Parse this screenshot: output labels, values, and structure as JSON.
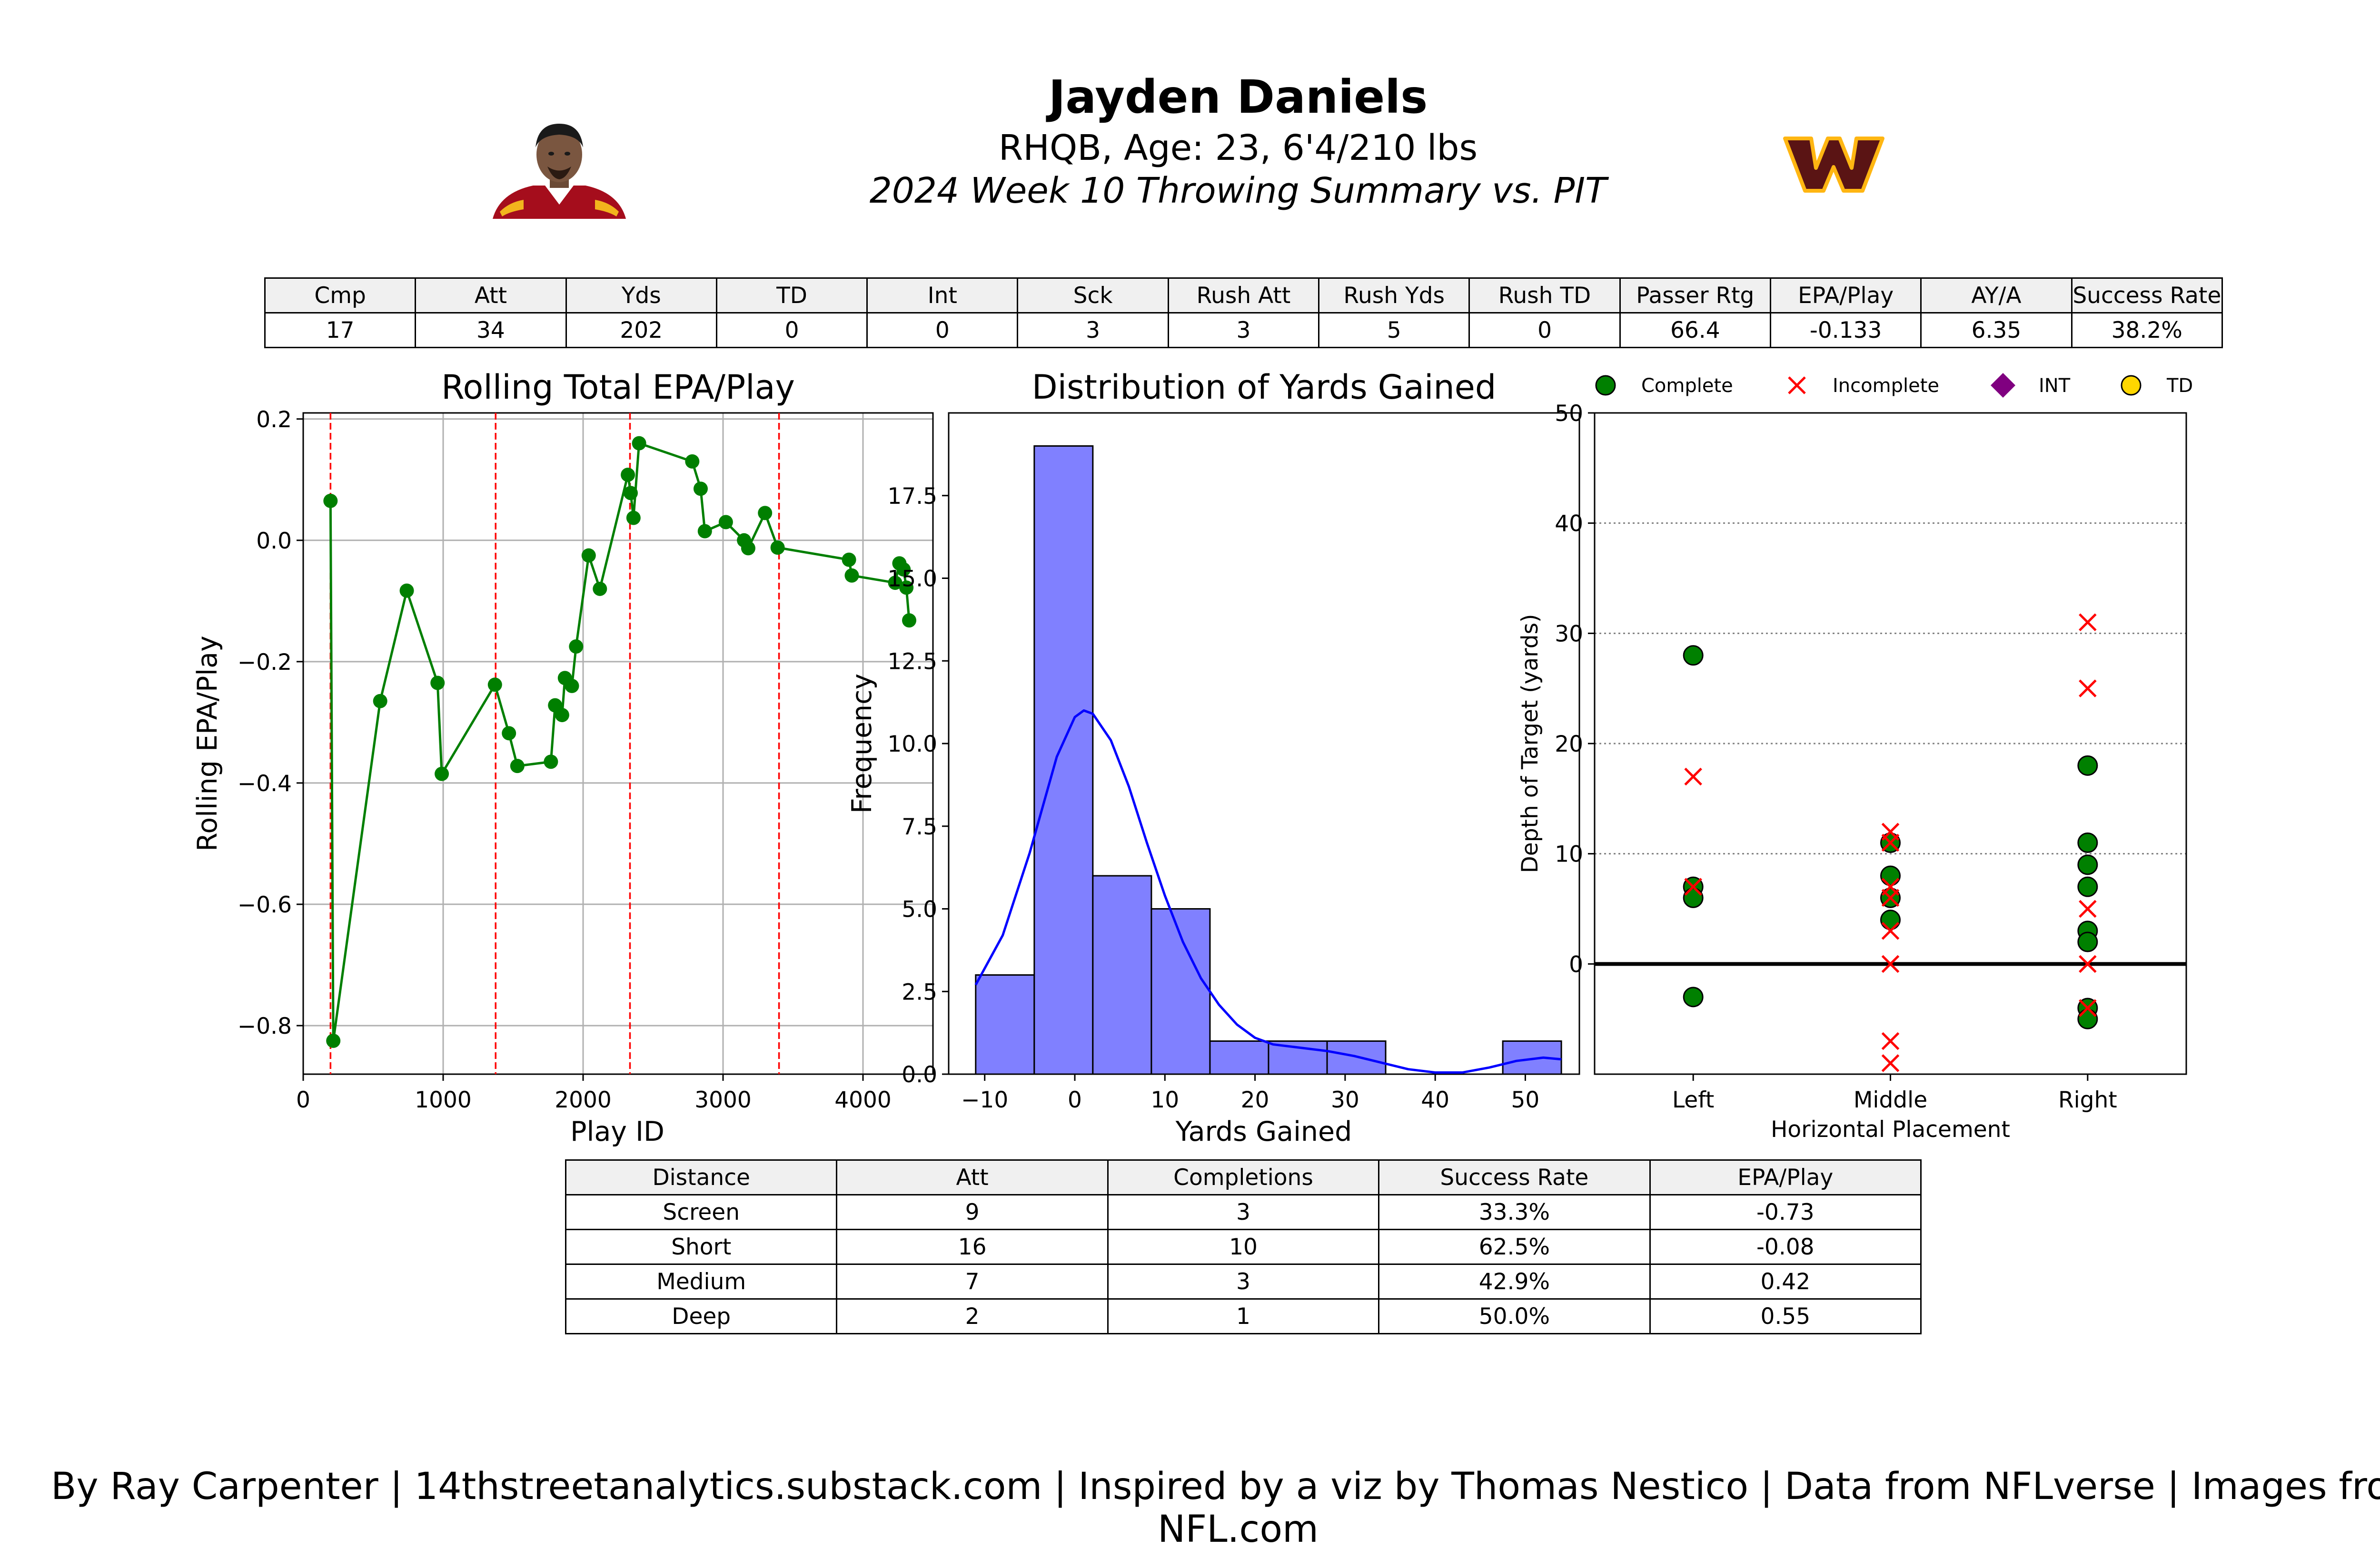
{
  "header": {
    "title": "Jayden Daniels",
    "subtitle": "RHQB, Age: 23, 6'4/210 lbs",
    "subtitle2": "2024 Week 10 Throwing Summary vs. PIT"
  },
  "colors": {
    "line": "#007f00",
    "marker": "#007f00",
    "vline": "#ff0000",
    "bar": "#8080ff",
    "kde": "#0000ff",
    "complete": "#008000",
    "incomplete": "#ff0000",
    "int": "#800080",
    "td": "#ffd700"
  },
  "stats_table": {
    "headers": [
      "Cmp",
      "Att",
      "Yds",
      "TD",
      "Int",
      "Sck",
      "Rush Att",
      "Rush Yds",
      "Rush TD",
      "Passer Rtg",
      "EPA/Play",
      "AY/A",
      "Success Rate"
    ],
    "values": [
      "17",
      "34",
      "202",
      "0",
      "0",
      "3",
      "3",
      "5",
      "0",
      "66.4",
      "-0.133",
      "6.35",
      "38.2%"
    ]
  },
  "distance_table": {
    "headers": [
      "Distance",
      "Att",
      "Completions",
      "Success Rate",
      "EPA/Play"
    ],
    "rows": [
      [
        "Screen",
        "9",
        "3",
        "33.3%",
        "-0.73"
      ],
      [
        "Short",
        "16",
        "10",
        "62.5%",
        "-0.08"
      ],
      [
        "Medium",
        "7",
        "3",
        "42.9%",
        "0.42"
      ],
      [
        "Deep",
        "2",
        "1",
        "50.0%",
        "0.55"
      ]
    ]
  },
  "credit": "By Ray Carpenter | 14thstreetanalytics.substack.com | Inspired by a viz by Thomas Nestico | Data from NFLverse | Images from NFL.com",
  "chart_data": [
    {
      "type": "line",
      "title": "Rolling Total EPA/Play",
      "xlabel": "Play ID",
      "ylabel": "Rolling EPA/Play",
      "xlim": [
        0,
        4500
      ],
      "ylim": [
        -0.88,
        0.21
      ],
      "xticks": [
        0,
        1000,
        2000,
        3000,
        4000
      ],
      "yticks": [
        -0.8,
        -0.6,
        -0.4,
        -0.2,
        0.0,
        0.2
      ],
      "grid": true,
      "quarter_lines": [
        195,
        1375,
        2335,
        3400
      ],
      "x": [
        195,
        215,
        550,
        740,
        960,
        990,
        1370,
        1470,
        1530,
        1770,
        1800,
        1850,
        1870,
        1920,
        1950,
        2040,
        2120,
        2320,
        2340,
        2360,
        2400,
        2780,
        2840,
        2870,
        3020,
        3150,
        3180,
        3300,
        3390,
        3900,
        3920,
        4230,
        4260,
        4290,
        4310,
        4330
      ],
      "y": [
        0.065,
        -0.825,
        -0.265,
        -0.083,
        -0.235,
        -0.385,
        -0.238,
        -0.318,
        -0.372,
        -0.365,
        -0.272,
        -0.288,
        -0.227,
        -0.24,
        -0.175,
        -0.025,
        -0.08,
        0.108,
        0.078,
        0.037,
        0.16,
        0.13,
        0.085,
        0.015,
        0.03,
        0.0,
        -0.013,
        0.045,
        -0.012,
        -0.032,
        -0.058,
        -0.07,
        -0.038,
        -0.048,
        -0.078,
        -0.132
      ]
    },
    {
      "type": "bar",
      "title": "Distribution of Yards Gained",
      "xlabel": "Yards Gained",
      "ylabel": "Frequency",
      "xlim": [
        -14,
        56
      ],
      "ylim": [
        0,
        20
      ],
      "xticks": [
        -10,
        0,
        10,
        20,
        30,
        40,
        50
      ],
      "yticks": [
        0.0,
        2.5,
        5.0,
        7.5,
        10.0,
        12.5,
        15.0,
        17.5
      ],
      "bin_edges": [
        -11,
        -4.5,
        2,
        8.5,
        15,
        21.5,
        28,
        34.5,
        41,
        47.5,
        54
      ],
      "values": [
        3,
        19,
        6,
        5,
        1,
        1,
        1,
        0,
        0,
        1
      ],
      "kde": {
        "x": [
          -11,
          -8,
          -5,
          -2,
          0,
          1,
          2,
          4,
          6,
          8,
          10,
          12,
          14,
          16,
          18,
          20,
          22,
          25,
          28,
          31,
          34,
          37,
          40,
          43,
          46,
          49,
          52,
          54
        ],
        "y": [
          2.7,
          4.2,
          6.7,
          9.6,
          10.8,
          11.0,
          10.9,
          10.1,
          8.7,
          7.0,
          5.4,
          4.0,
          2.9,
          2.1,
          1.5,
          1.1,
          0.9,
          0.8,
          0.7,
          0.55,
          0.35,
          0.15,
          0.05,
          0.05,
          0.2,
          0.4,
          0.5,
          0.45
        ]
      }
    },
    {
      "type": "scatter",
      "xlabel": "Horizontal Placement",
      "ylabel": "Depth of Target (yards)",
      "categories": [
        "Left",
        "Middle",
        "Right"
      ],
      "ylim": [
        -10,
        50
      ],
      "yticks": [
        0,
        10,
        20,
        30,
        40,
        50
      ],
      "legend": [
        "Complete",
        "Incomplete",
        "INT",
        "TD"
      ],
      "legend_position": "top",
      "grid": "horizontal dotted",
      "complete": [
        {
          "cat": "Left",
          "y": 28
        },
        {
          "cat": "Left",
          "y": 7
        },
        {
          "cat": "Left",
          "y": 6
        },
        {
          "cat": "Left",
          "y": -3
        },
        {
          "cat": "Middle",
          "y": 11
        },
        {
          "cat": "Middle",
          "y": 8
        },
        {
          "cat": "Middle",
          "y": 6
        },
        {
          "cat": "Middle",
          "y": 4
        },
        {
          "cat": "Right",
          "y": 18
        },
        {
          "cat": "Right",
          "y": 11
        },
        {
          "cat": "Right",
          "y": 9
        },
        {
          "cat": "Right",
          "y": 7
        },
        {
          "cat": "Right",
          "y": 3
        },
        {
          "cat": "Right",
          "y": 2
        },
        {
          "cat": "Right",
          "y": -4
        },
        {
          "cat": "Right",
          "y": -5
        }
      ],
      "incomplete": [
        {
          "cat": "Left",
          "y": 17
        },
        {
          "cat": "Left",
          "y": 7
        },
        {
          "cat": "Middle",
          "y": 12
        },
        {
          "cat": "Middle",
          "y": 11
        },
        {
          "cat": "Middle",
          "y": 7
        },
        {
          "cat": "Middle",
          "y": 6
        },
        {
          "cat": "Middle",
          "y": 3
        },
        {
          "cat": "Middle",
          "y": 0
        },
        {
          "cat": "Middle",
          "y": -7
        },
        {
          "cat": "Middle",
          "y": -9
        },
        {
          "cat": "Right",
          "y": 31
        },
        {
          "cat": "Right",
          "y": 25
        },
        {
          "cat": "Right",
          "y": 5
        },
        {
          "cat": "Right",
          "y": 0
        },
        {
          "cat": "Right",
          "y": -4
        }
      ],
      "int": [],
      "td": []
    }
  ]
}
